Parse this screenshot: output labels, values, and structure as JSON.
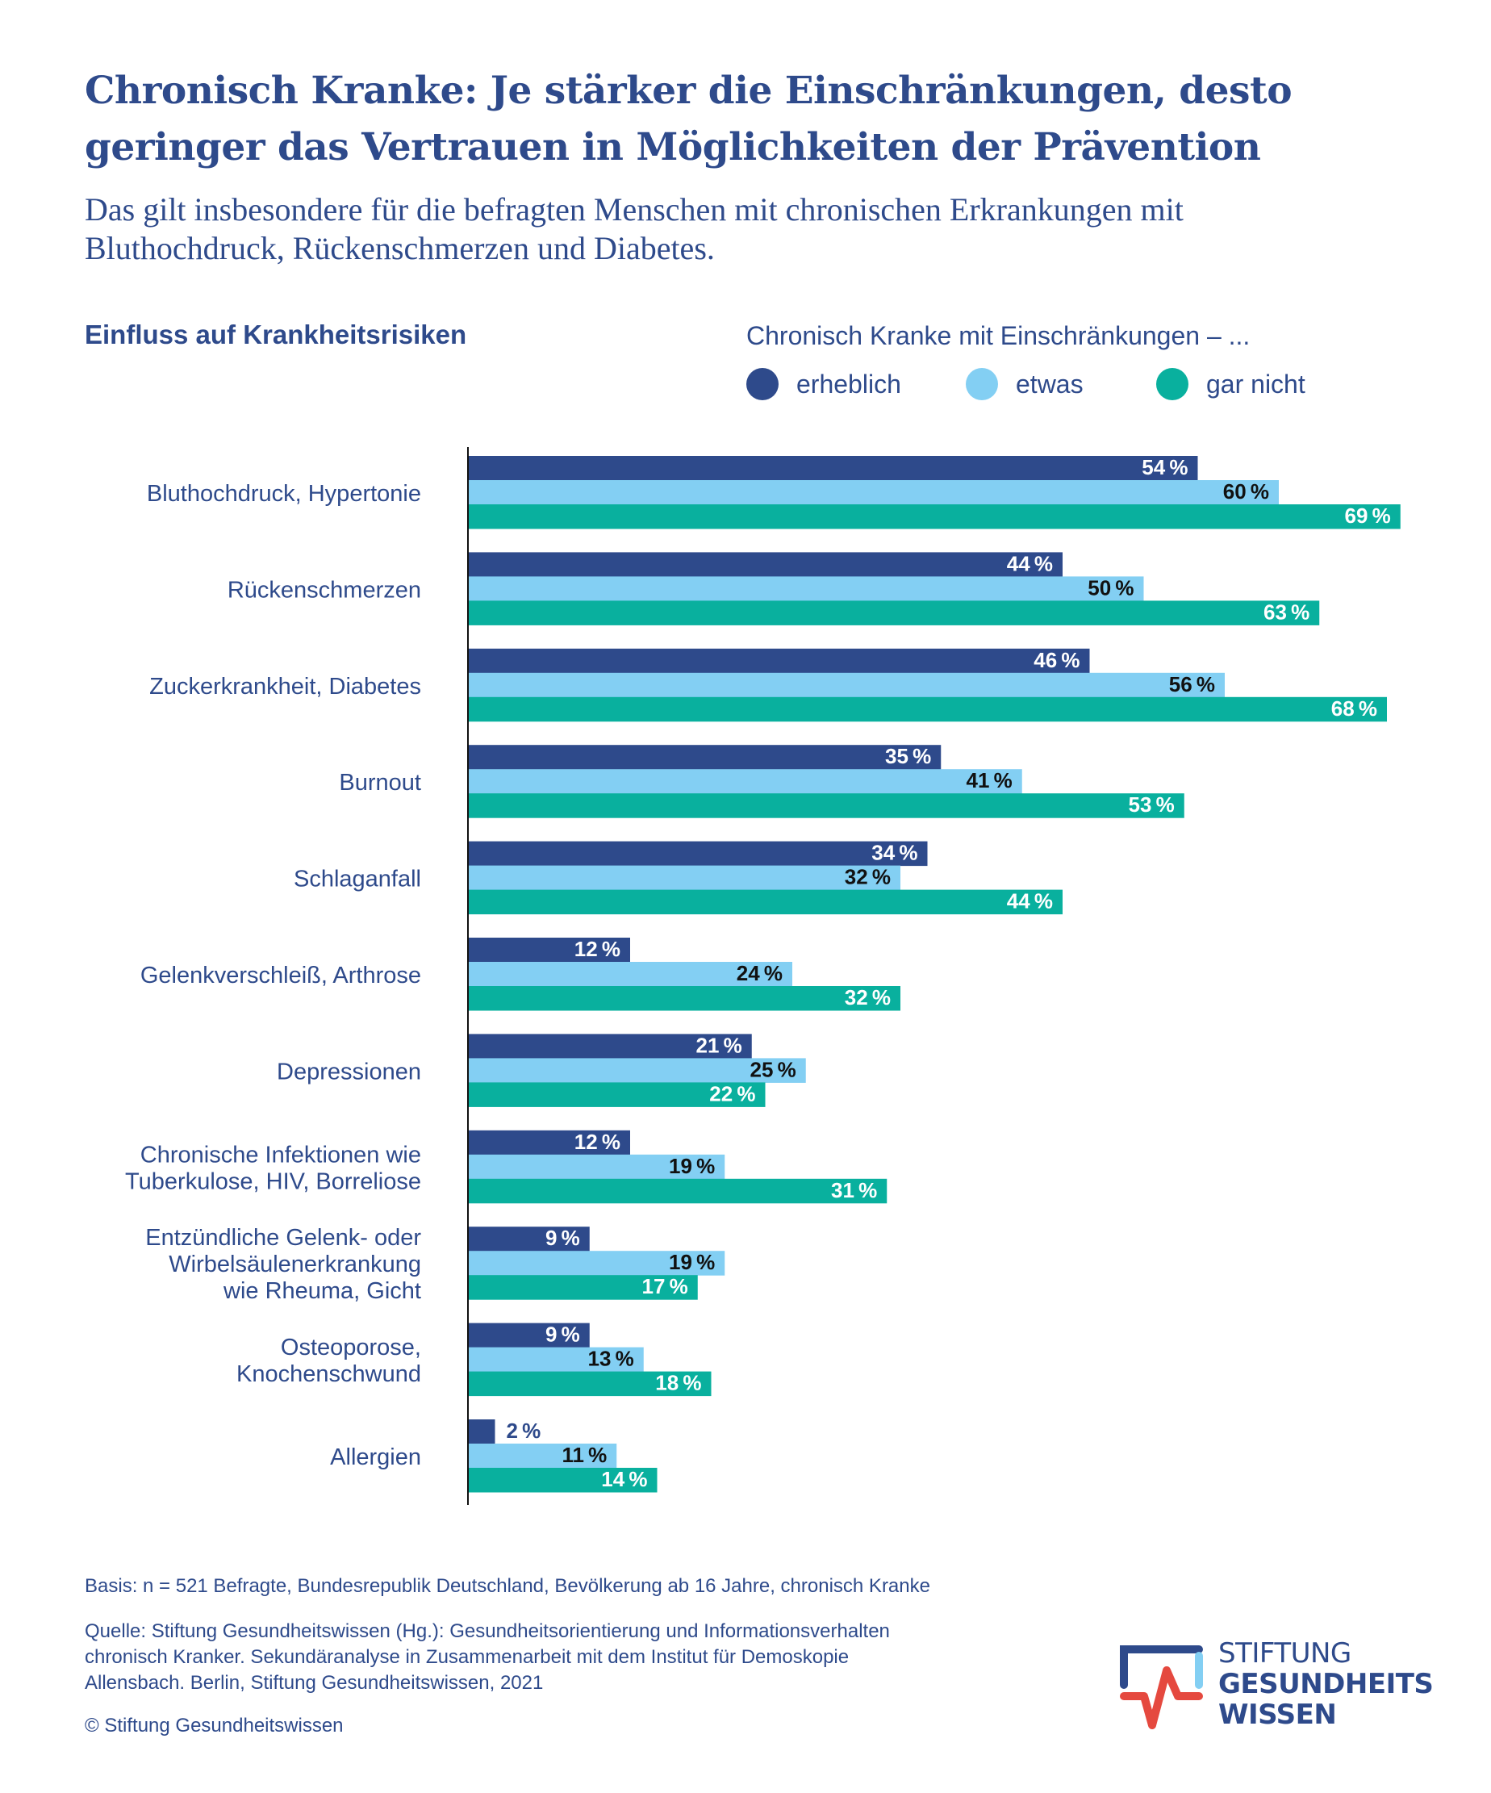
{
  "header": {
    "title_line1": "Chronisch Kranke: Je stärker die Einschränkungen, desto",
    "title_line2": "geringer das Vertrauen in Möglichkeiten der Prävention",
    "subtitle_line1": "Das gilt insbesondere für die befragten Menschen mit chronischen Erkrankungen mit",
    "subtitle_line2": "Bluthochdruck, Rückenschmerzen und Diabetes."
  },
  "section_title": "Einfluss auf Krankheitsrisiken",
  "legend": {
    "title": "Chronisch Kranke mit Einschränkungen – ...",
    "items": [
      {
        "label": "erheblich",
        "color": "#2e4a8b"
      },
      {
        "label": "etwas",
        "color": "#83cff3"
      },
      {
        "label": "gar nicht",
        "color": "#09b09e"
      }
    ]
  },
  "chart_data": {
    "type": "bar",
    "orientation": "horizontal",
    "title": "Einfluss auf Krankheitsrisiken",
    "xlabel": "",
    "ylabel": "",
    "unit": "%",
    "xlim": [
      0,
      70
    ],
    "grid": false,
    "legend_position": "top-right",
    "categories": [
      [
        "Bluthochdruck, Hypertonie"
      ],
      [
        "Rückenschmerzen"
      ],
      [
        "Zuckerkrankheit, Diabetes"
      ],
      [
        "Burnout"
      ],
      [
        "Schlaganfall"
      ],
      [
        "Gelenkverschleiß, Arthrose"
      ],
      [
        "Depressionen"
      ],
      [
        "Chronische Infektionen wie",
        "Tuberkulose, HIV, Borreliose"
      ],
      [
        "Entzündliche Gelenk- oder",
        "Wirbelsäulenerkrankung",
        "wie Rheuma, Gicht"
      ],
      [
        "Osteoporose,",
        "Knochenschwund"
      ],
      [
        "Allergien"
      ]
    ],
    "series": [
      {
        "name": "erheblich",
        "color": "#2e4a8b",
        "label_color": "#ffffff",
        "values": [
          54,
          44,
          46,
          35,
          34,
          12,
          21,
          12,
          9,
          9,
          2
        ]
      },
      {
        "name": "etwas",
        "color": "#83cff3",
        "label_color": "#111111",
        "values": [
          60,
          50,
          56,
          41,
          32,
          24,
          25,
          19,
          19,
          13,
          11
        ]
      },
      {
        "name": "gar nicht",
        "color": "#09b09e",
        "label_color": "#ffffff",
        "values": [
          69,
          63,
          68,
          53,
          44,
          32,
          22,
          31,
          17,
          18,
          14
        ]
      }
    ]
  },
  "footer": {
    "basis": "Basis: n = 521 Befragte, Bundesrepublik Deutschland, Bevölkerung ab 16 Jahre, chronisch Kranke",
    "source_line1": "Quelle: Stiftung Gesundheitswissen (Hg.): Gesundheitsorientierung und Informationsverhalten",
    "source_line2": "chronisch Kranker. Sekundäranalyse in Zusammenarbeit mit dem Institut für Demoskopie",
    "source_line3": "Allensbach. Berlin, Stiftung Gesundheitswissen, 2021",
    "copyright": "© Stiftung Gesundheitswissen"
  },
  "logo": {
    "line1": "STIFTUNG",
    "line2": "GESUNDHEITS",
    "line3": "WISSEN"
  }
}
